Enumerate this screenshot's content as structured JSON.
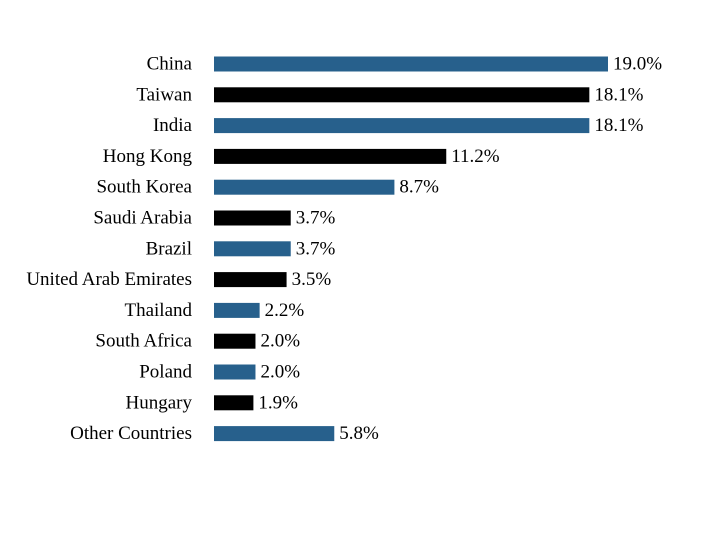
{
  "chart_data": {
    "type": "bar",
    "orientation": "horizontal",
    "title": "",
    "xlabel": "",
    "ylabel": "",
    "xlim": [
      0,
      19.0
    ],
    "grid": false,
    "legend": "none",
    "value_suffix": "%",
    "colors": [
      "#27608c",
      "#000000"
    ],
    "categories": [
      "China",
      "Taiwan",
      "India",
      "Hong Kong",
      "South Korea",
      "Saudi Arabia",
      "Brazil",
      "United Arab Emirates",
      "Thailand",
      "South Africa",
      "Poland",
      "Hungary",
      "Other Countries"
    ],
    "values": [
      19.0,
      18.1,
      18.1,
      11.2,
      8.7,
      3.7,
      3.7,
      3.5,
      2.2,
      2.0,
      2.0,
      1.9,
      5.8
    ],
    "data_labels": [
      "19.0%",
      "18.1%",
      "18.1%",
      "11.2%",
      "8.7%",
      "3.7%",
      "3.7%",
      "3.5%",
      "2.2%",
      "2.0%",
      "2.0%",
      "1.9%",
      "5.8%"
    ]
  }
}
